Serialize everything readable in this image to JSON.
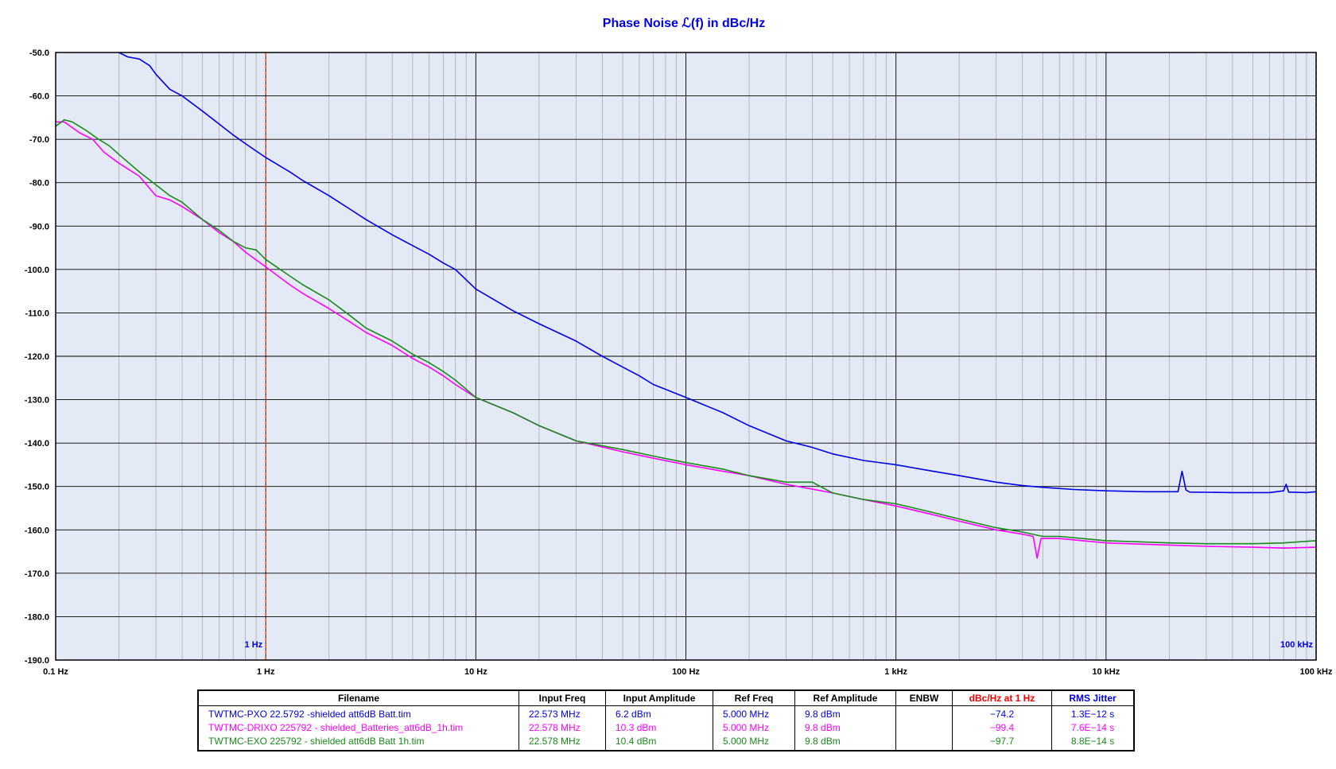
{
  "chart_data": {
    "type": "line",
    "title": "Phase Noise ℒ(f) in dBc/Hz",
    "x_scale": "log",
    "xlim": [
      0.1,
      100000
    ],
    "ylim": [
      -190,
      -50
    ],
    "grid": true,
    "x_ticks": [
      {
        "value": 0.1,
        "label": "0.1 Hz"
      },
      {
        "value": 1,
        "label": "1 Hz"
      },
      {
        "value": 10,
        "label": "10 Hz"
      },
      {
        "value": 100,
        "label": "100 Hz"
      },
      {
        "value": 1000,
        "label": "1 kHz"
      },
      {
        "value": 10000,
        "label": "10 kHz"
      },
      {
        "value": 100000,
        "label": "100 kHz"
      }
    ],
    "y_ticks": [
      {
        "value": -50,
        "label": "-50.0"
      },
      {
        "value": -60,
        "label": "-60.0"
      },
      {
        "value": -70,
        "label": "-70.0"
      },
      {
        "value": -80,
        "label": "-80.0"
      },
      {
        "value": -90,
        "label": "-90.0"
      },
      {
        "value": -100,
        "label": "-100.0"
      },
      {
        "value": -110,
        "label": "-110.0"
      },
      {
        "value": -120,
        "label": "-120.0"
      },
      {
        "value": -130,
        "label": "-130.0"
      },
      {
        "value": -140,
        "label": "-140.0"
      },
      {
        "value": -150,
        "label": "-150.0"
      },
      {
        "value": -160,
        "label": "-160.0"
      },
      {
        "value": -170,
        "label": "-170.0"
      },
      {
        "value": -180,
        "label": "-180.0"
      },
      {
        "value": -190,
        "label": "-190.0"
      }
    ],
    "markers": [
      {
        "x": 1,
        "label": "1 Hz",
        "color": "#ff3300",
        "label_color": "#0000e6"
      },
      {
        "x": 100000,
        "label": "100 kHz",
        "color": "#0000e6",
        "label_color": "#0000e6"
      }
    ],
    "series": [
      {
        "name": "TWTMC-PXO 22.5792 -shielded att6dB Batt.tim",
        "color": "#0000e6",
        "points": [
          [
            0.2,
            -50
          ],
          [
            0.22,
            -51
          ],
          [
            0.25,
            -51.5
          ],
          [
            0.28,
            -53
          ],
          [
            0.3,
            -55
          ],
          [
            0.35,
            -58.5
          ],
          [
            0.4,
            -60
          ],
          [
            0.5,
            -63.5
          ],
          [
            0.6,
            -66.5
          ],
          [
            0.7,
            -69
          ],
          [
            0.8,
            -71
          ],
          [
            1.0,
            -74.2
          ],
          [
            1.3,
            -77.5
          ],
          [
            1.5,
            -79.5
          ],
          [
            2.0,
            -83
          ],
          [
            2.5,
            -86
          ],
          [
            3.0,
            -88.5
          ],
          [
            4.0,
            -92
          ],
          [
            5.0,
            -94.5
          ],
          [
            6.0,
            -96.5
          ],
          [
            7.0,
            -98.5
          ],
          [
            8.0,
            -100
          ],
          [
            10,
            -104.5
          ],
          [
            15,
            -109.5
          ],
          [
            20,
            -112.5
          ],
          [
            30,
            -116.5
          ],
          [
            40,
            -120
          ],
          [
            50,
            -122.5
          ],
          [
            60,
            -124.5
          ],
          [
            70,
            -126.5
          ],
          [
            100,
            -129.5
          ],
          [
            150,
            -133
          ],
          [
            200,
            -136
          ],
          [
            300,
            -139.5
          ],
          [
            400,
            -141
          ],
          [
            500,
            -142.5
          ],
          [
            700,
            -144
          ],
          [
            1000,
            -145
          ],
          [
            1500,
            -146.5
          ],
          [
            2000,
            -147.5
          ],
          [
            3000,
            -149
          ],
          [
            4000,
            -149.8
          ],
          [
            5000,
            -150.2
          ],
          [
            7000,
            -150.7
          ],
          [
            10000,
            -151
          ],
          [
            15000,
            -151.2
          ],
          [
            20000,
            -151.2
          ],
          [
            22000,
            -151.2
          ],
          [
            23000,
            -146.5
          ],
          [
            24000,
            -150.8
          ],
          [
            25000,
            -151.3
          ],
          [
            40000,
            -151.4
          ],
          [
            60000,
            -151.4
          ],
          [
            70000,
            -151
          ],
          [
            72000,
            -149.5
          ],
          [
            74000,
            -151.3
          ],
          [
            90000,
            -151.4
          ],
          [
            100000,
            -151.2
          ]
        ]
      },
      {
        "name": "TWTMC-DRIXO 225792  - shielded_Batteries_att6dB_1h.tim",
        "color": "#ff00ff",
        "points": [
          [
            0.1,
            -66
          ],
          [
            0.11,
            -66
          ],
          [
            0.13,
            -68.5
          ],
          [
            0.15,
            -70
          ],
          [
            0.17,
            -73
          ],
          [
            0.2,
            -75.5
          ],
          [
            0.25,
            -78.5
          ],
          [
            0.3,
            -83
          ],
          [
            0.35,
            -84
          ],
          [
            0.4,
            -85.5
          ],
          [
            0.5,
            -88.5
          ],
          [
            0.6,
            -91.5
          ],
          [
            0.7,
            -93.5
          ],
          [
            0.8,
            -96
          ],
          [
            1.0,
            -99.4
          ],
          [
            1.3,
            -103.5
          ],
          [
            1.5,
            -105.5
          ],
          [
            2.0,
            -109
          ],
          [
            2.5,
            -112
          ],
          [
            3.0,
            -114.5
          ],
          [
            4.0,
            -117.5
          ],
          [
            5.0,
            -120.5
          ],
          [
            6.0,
            -122.5
          ],
          [
            7.0,
            -124.5
          ],
          [
            8.0,
            -126.5
          ],
          [
            10,
            -129.5
          ],
          [
            15,
            -133
          ],
          [
            20,
            -136
          ],
          [
            30,
            -139.5
          ],
          [
            50,
            -142
          ],
          [
            70,
            -143.5
          ],
          [
            100,
            -145
          ],
          [
            150,
            -146.5
          ],
          [
            200,
            -147.5
          ],
          [
            300,
            -149.5
          ],
          [
            500,
            -151.5
          ],
          [
            700,
            -153
          ],
          [
            1000,
            -154.5
          ],
          [
            1500,
            -156.5
          ],
          [
            2000,
            -158
          ],
          [
            3000,
            -160
          ],
          [
            4000,
            -161
          ],
          [
            4500,
            -161.5
          ],
          [
            4700,
            -166.5
          ],
          [
            4900,
            -162
          ],
          [
            6000,
            -162
          ],
          [
            10000,
            -163
          ],
          [
            20000,
            -163.5
          ],
          [
            30000,
            -163.8
          ],
          [
            50000,
            -164
          ],
          [
            70000,
            -164.2
          ],
          [
            100000,
            -164
          ]
        ]
      },
      {
        "name": "TWTMC-EXO 225792 - shielded att6dB Batt 1h.tim",
        "color": "#1a8a1a",
        "points": [
          [
            0.1,
            -67
          ],
          [
            0.11,
            -65.5
          ],
          [
            0.12,
            -66
          ],
          [
            0.14,
            -68
          ],
          [
            0.16,
            -70
          ],
          [
            0.18,
            -71.5
          ],
          [
            0.2,
            -73.5
          ],
          [
            0.25,
            -77.5
          ],
          [
            0.3,
            -80.5
          ],
          [
            0.35,
            -83
          ],
          [
            0.4,
            -84.5
          ],
          [
            0.5,
            -88.5
          ],
          [
            0.6,
            -91
          ],
          [
            0.7,
            -93.5
          ],
          [
            0.8,
            -95
          ],
          [
            0.9,
            -95.5
          ],
          [
            1.0,
            -97.7
          ],
          [
            1.3,
            -101.5
          ],
          [
            1.5,
            -103.5
          ],
          [
            2.0,
            -107
          ],
          [
            2.5,
            -110.5
          ],
          [
            3.0,
            -113.5
          ],
          [
            4.0,
            -116.5
          ],
          [
            5.0,
            -119.5
          ],
          [
            6.0,
            -121.5
          ],
          [
            7.0,
            -123.5
          ],
          [
            8.0,
            -125.5
          ],
          [
            10,
            -129.5
          ],
          [
            15,
            -133
          ],
          [
            20,
            -136
          ],
          [
            30,
            -139.5
          ],
          [
            50,
            -141.5
          ],
          [
            70,
            -143
          ],
          [
            100,
            -144.5
          ],
          [
            150,
            -146
          ],
          [
            200,
            -147.5
          ],
          [
            300,
            -149
          ],
          [
            400,
            -149
          ],
          [
            500,
            -151.5
          ],
          [
            700,
            -153
          ],
          [
            1000,
            -154
          ],
          [
            1500,
            -156
          ],
          [
            2000,
            -157.5
          ],
          [
            3000,
            -159.5
          ],
          [
            4000,
            -160.5
          ],
          [
            5000,
            -161.5
          ],
          [
            6000,
            -161.5
          ],
          [
            10000,
            -162.5
          ],
          [
            20000,
            -163
          ],
          [
            30000,
            -163.2
          ],
          [
            50000,
            -163.2
          ],
          [
            70000,
            -163
          ],
          [
            100000,
            -162.5
          ]
        ]
      }
    ]
  },
  "legend_table": {
    "headers": {
      "filename": "Filename",
      "input_freq": "Input Freq",
      "input_amplitude": "Input Amplitude",
      "ref_freq": "Ref Freq",
      "ref_amplitude": "Ref Amplitude",
      "enbw": "ENBW",
      "dbc_at_1hz": "dBc/Hz at 1 Hz",
      "rms_jitter": "RMS Jitter"
    },
    "header_colors": {
      "dbc_at_1hz": "#ff0000",
      "rms_jitter": "#0000e6"
    },
    "rows": [
      {
        "color": "#0000e6",
        "filename": "TWTMC-PXO 22.5792 -shielded att6dB Batt.tim",
        "input_freq": "22.573 MHz",
        "input_amplitude": "6.2 dBm",
        "ref_freq": "5.000 MHz",
        "ref_amplitude": "9.8 dBm",
        "enbw": "",
        "dbc_at_1hz": "−74.2",
        "rms_jitter": "1.3E−12 s"
      },
      {
        "color": "#ff00ff",
        "filename": "TWTMC-DRIXO 225792  - shielded_Batteries_att6dB_1h.tim",
        "input_freq": "22.578 MHz",
        "input_amplitude": "10.3 dBm",
        "ref_freq": "5.000 MHz",
        "ref_amplitude": "9.8 dBm",
        "enbw": "",
        "dbc_at_1hz": "−99.4",
        "rms_jitter": "7.6E−14 s"
      },
      {
        "color": "#1a8a1a",
        "filename": "TWTMC-EXO 225792 - shielded att6dB Batt 1h.tim",
        "input_freq": "22.578 MHz",
        "input_amplitude": "10.4 dBm",
        "ref_freq": "5.000 MHz",
        "ref_amplitude": "9.8 dBm",
        "enbw": "",
        "dbc_at_1hz": "−97.7",
        "rms_jitter": "8.8E−14 s"
      }
    ]
  }
}
